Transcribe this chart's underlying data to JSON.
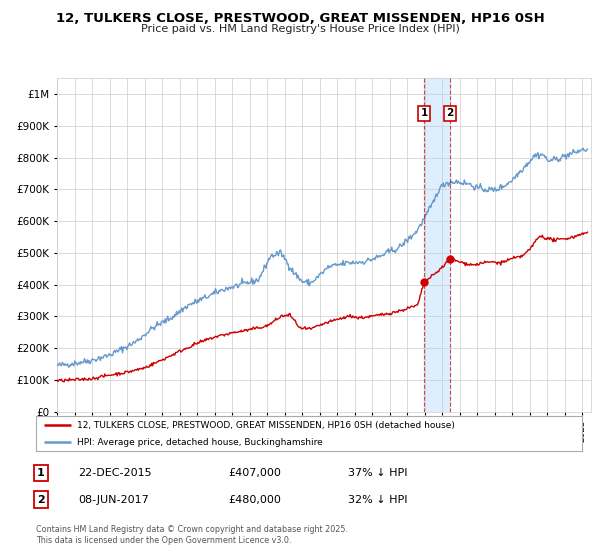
{
  "title": "12, TULKERS CLOSE, PRESTWOOD, GREAT MISSENDEN, HP16 0SH",
  "subtitle": "Price paid vs. HM Land Registry's House Price Index (HPI)",
  "legend_label_red": "12, TULKERS CLOSE, PRESTWOOD, GREAT MISSENDEN, HP16 0SH (detached house)",
  "legend_label_blue": "HPI: Average price, detached house, Buckinghamshire",
  "footer": "Contains HM Land Registry data © Crown copyright and database right 2025.\nThis data is licensed under the Open Government Licence v3.0.",
  "annotation1_label": "1",
  "annotation1_date": "22-DEC-2015",
  "annotation1_price": "£407,000",
  "annotation1_hpi": "37% ↓ HPI",
  "annotation2_label": "2",
  "annotation2_date": "08-JUN-2017",
  "annotation2_price": "£480,000",
  "annotation2_hpi": "32% ↓ HPI",
  "sale1_x": 2015.97,
  "sale1_y": 407000,
  "sale2_x": 2017.44,
  "sale2_y": 480000,
  "vline1_x": 2015.97,
  "vline2_x": 2017.44,
  "shade_xmin": 2015.97,
  "shade_xmax": 2017.44,
  "ylim": [
    0,
    1050000
  ],
  "xlim_min": 1995,
  "xlim_max": 2025.5,
  "red_color": "#cc0000",
  "blue_color": "#6699cc",
  "background_color": "#ffffff",
  "grid_color": "#cccccc",
  "shade_color": "#ddeeff",
  "annotation_box_color": "#cc0000"
}
